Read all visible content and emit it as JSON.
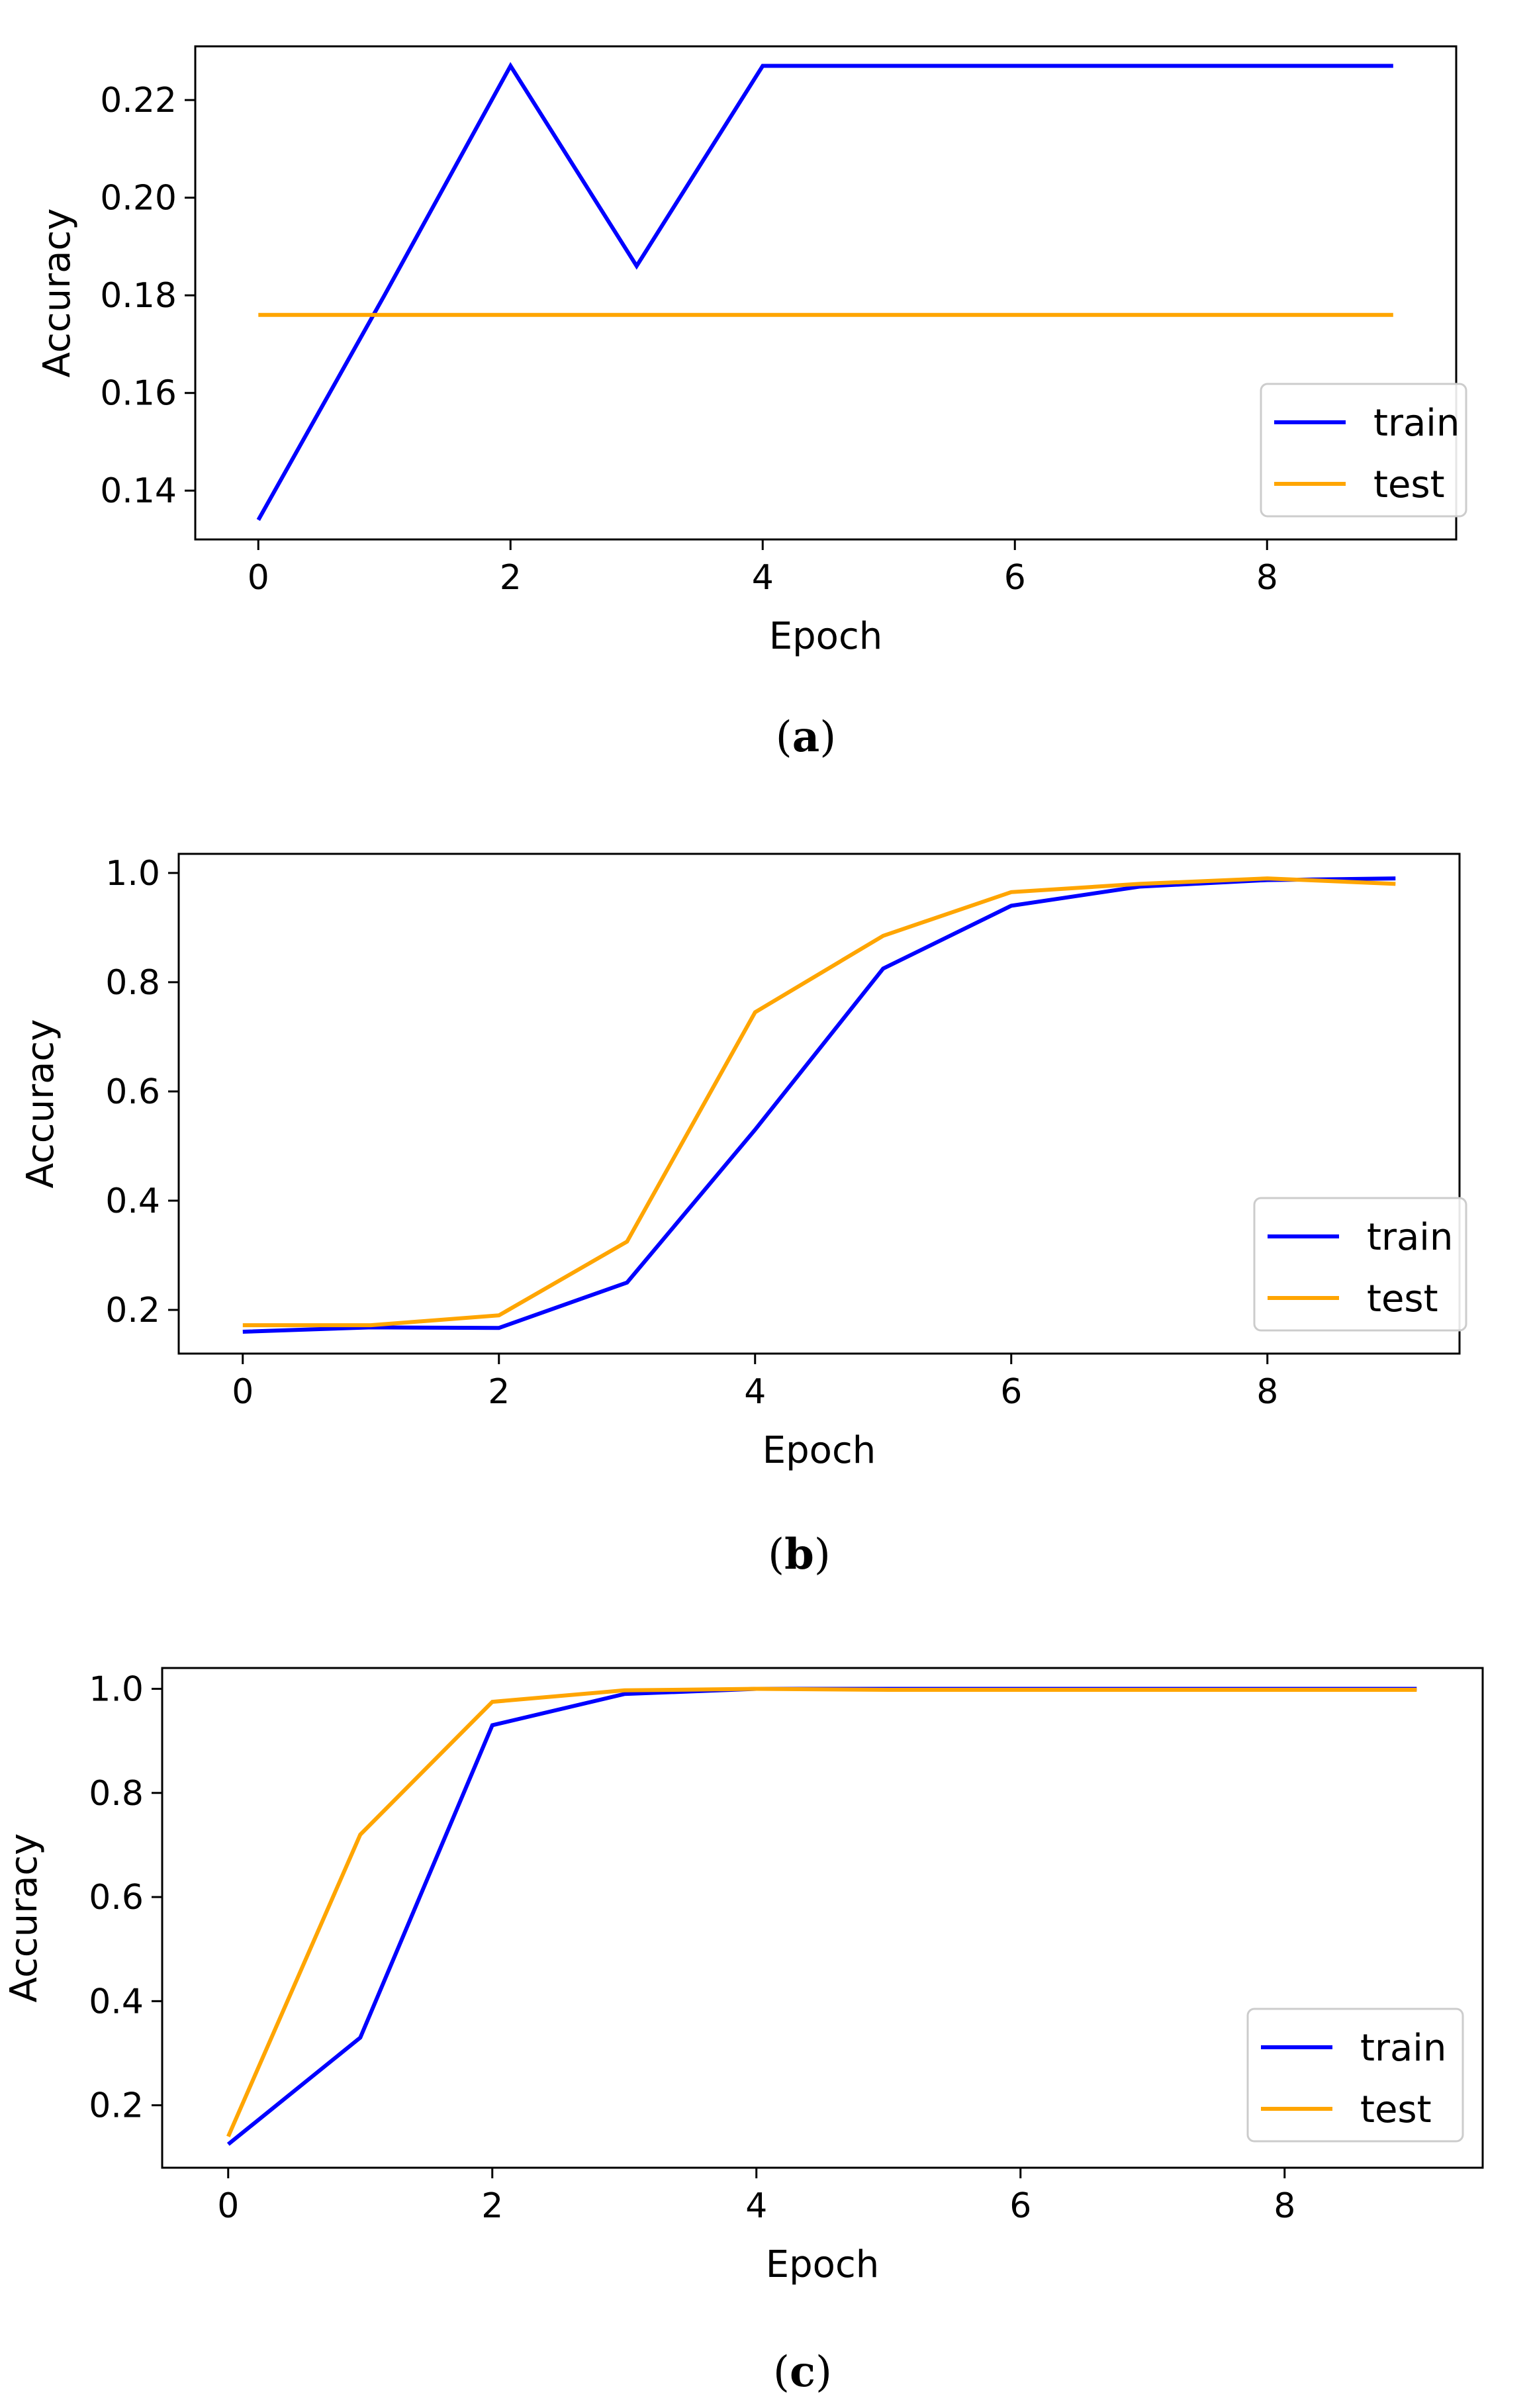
{
  "colors": {
    "train": "#0000ff",
    "test": "#ffa500",
    "axis": "#000000",
    "legend_border": "#cccccc"
  },
  "chart_data": [
    {
      "type": "line",
      "caption": "a",
      "xlabel": "Epoch",
      "ylabel": "Accuracy",
      "xlim": [
        -0.5,
        9.5
      ],
      "ylim": [
        0.13,
        0.231
      ],
      "xticks": [
        0,
        2,
        4,
        6,
        8
      ],
      "yticks": [
        0.14,
        0.16,
        0.18,
        0.2,
        0.22
      ],
      "ytick_labels": [
        "0.14",
        "0.16",
        "0.18",
        "0.20",
        "0.22"
      ],
      "legend_position": "lower-right",
      "series": [
        {
          "name": "train",
          "x": [
            0,
            1,
            2,
            3,
            4,
            5,
            6,
            7,
            8,
            9
          ],
          "values": [
            0.134,
            0.18,
            0.227,
            0.186,
            0.227,
            0.227,
            0.227,
            0.227,
            0.227,
            0.227
          ]
        },
        {
          "name": "test",
          "x": [
            0,
            1,
            2,
            3,
            4,
            5,
            6,
            7,
            8,
            9
          ],
          "values": [
            0.176,
            0.176,
            0.176,
            0.176,
            0.176,
            0.176,
            0.176,
            0.176,
            0.176,
            0.176
          ]
        }
      ]
    },
    {
      "type": "line",
      "caption": "b",
      "xlabel": "Epoch",
      "ylabel": "Accuracy",
      "xlim": [
        -0.5,
        9.5
      ],
      "ylim": [
        0.12,
        1.035
      ],
      "xticks": [
        0,
        2,
        4,
        6,
        8
      ],
      "yticks": [
        0.2,
        0.4,
        0.6,
        0.8,
        1.0
      ],
      "ytick_labels": [
        "0.2",
        "0.4",
        "0.6",
        "0.8",
        "1.0"
      ],
      "legend_position": "lower-right",
      "series": [
        {
          "name": "train",
          "x": [
            0,
            1,
            2,
            3,
            4,
            5,
            6,
            7,
            8,
            9
          ],
          "values": [
            0.16,
            0.168,
            0.167,
            0.25,
            0.53,
            0.825,
            0.94,
            0.975,
            0.987,
            0.99
          ]
        },
        {
          "name": "test",
          "x": [
            0,
            1,
            2,
            3,
            4,
            5,
            6,
            7,
            8,
            9
          ],
          "values": [
            0.172,
            0.172,
            0.19,
            0.325,
            0.745,
            0.885,
            0.965,
            0.98,
            0.99,
            0.98
          ]
        }
      ]
    },
    {
      "type": "line",
      "caption": "c",
      "xlabel": "Epoch",
      "ylabel": "Accuracy",
      "xlim": [
        -0.5,
        9.5
      ],
      "ylim": [
        0.08,
        1.04
      ],
      "xticks": [
        0,
        2,
        4,
        6,
        8
      ],
      "yticks": [
        0.2,
        0.4,
        0.6,
        0.8,
        1.0
      ],
      "ytick_labels": [
        "0.2",
        "0.4",
        "0.6",
        "0.8",
        "1.0"
      ],
      "legend_position": "lower-right",
      "series": [
        {
          "name": "train",
          "x": [
            0,
            1,
            2,
            3,
            4,
            5,
            6,
            7,
            8,
            9
          ],
          "values": [
            0.125,
            0.33,
            0.93,
            0.99,
            1.0,
            1.0,
            1.0,
            1.0,
            1.0,
            1.0
          ]
        },
        {
          "name": "test",
          "x": [
            0,
            1,
            2,
            3,
            4,
            5,
            6,
            7,
            8,
            9
          ],
          "values": [
            0.14,
            0.72,
            0.975,
            0.997,
            1.0,
            0.998,
            0.998,
            0.998,
            0.998,
            0.998
          ]
        }
      ]
    }
  ]
}
